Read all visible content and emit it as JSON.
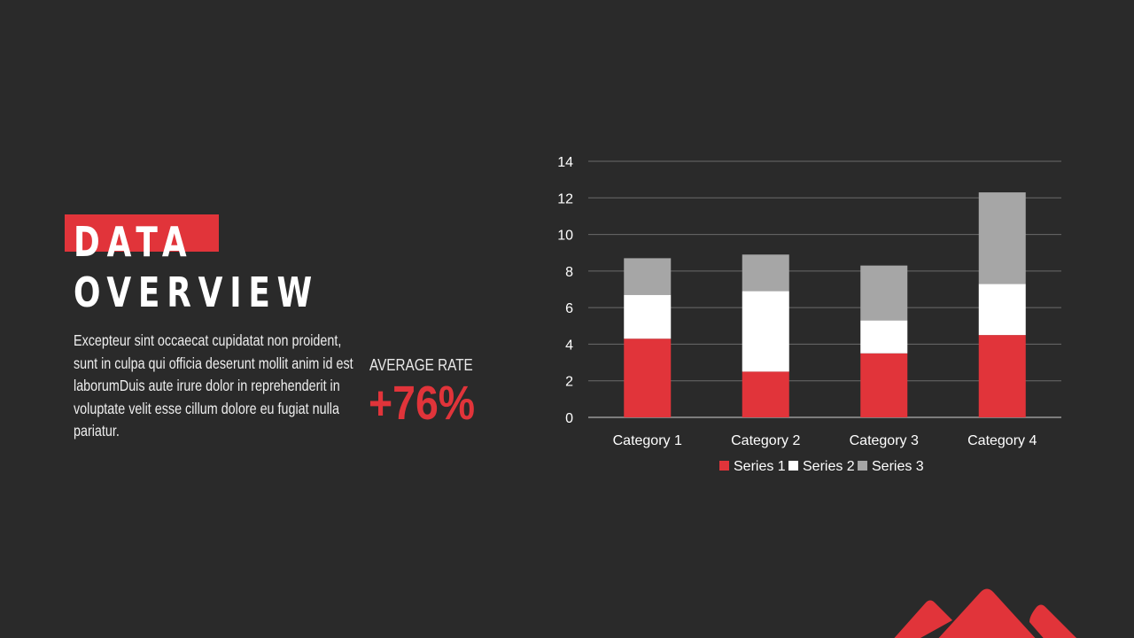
{
  "slide": {
    "title_line1": "DATA",
    "title_line2": "OVERVIEW",
    "body": "Excepteur sint occaecat cupidatat non proident, sunt in culpa qui officia deserunt mollit anim id est laborumDuis aute irure dolor in reprehenderit in voluptate velit esse cillum dolore eu fugiat nulla pariatur.",
    "average_label": "AVERAGE RATE",
    "average_value": "+76%"
  },
  "colors": {
    "background": "#2a2a2a",
    "accent": "#e1343a",
    "series1": "#e1343a",
    "series2": "#ffffff",
    "series3": "#a6a6a6",
    "gridline": "#6b6b6b"
  },
  "chart_data": {
    "type": "bar",
    "stacked": true,
    "categories": [
      "Category 1",
      "Category 2",
      "Category 3",
      "Category 4"
    ],
    "series": [
      {
        "name": "Series 1",
        "color": "#e1343a",
        "values": [
          4.3,
          2.5,
          3.5,
          4.5
        ]
      },
      {
        "name": "Series 2",
        "color": "#ffffff",
        "values": [
          2.4,
          4.4,
          1.8,
          2.8
        ]
      },
      {
        "name": "Series 3",
        "color": "#a6a6a6",
        "values": [
          2.0,
          2.0,
          3.0,
          5.0
        ]
      }
    ],
    "ylim": [
      0,
      14
    ],
    "yticks": [
      "0",
      "2",
      "4",
      "6",
      "8",
      "10",
      "12",
      "14"
    ],
    "grid": true,
    "legend": "bottom"
  }
}
